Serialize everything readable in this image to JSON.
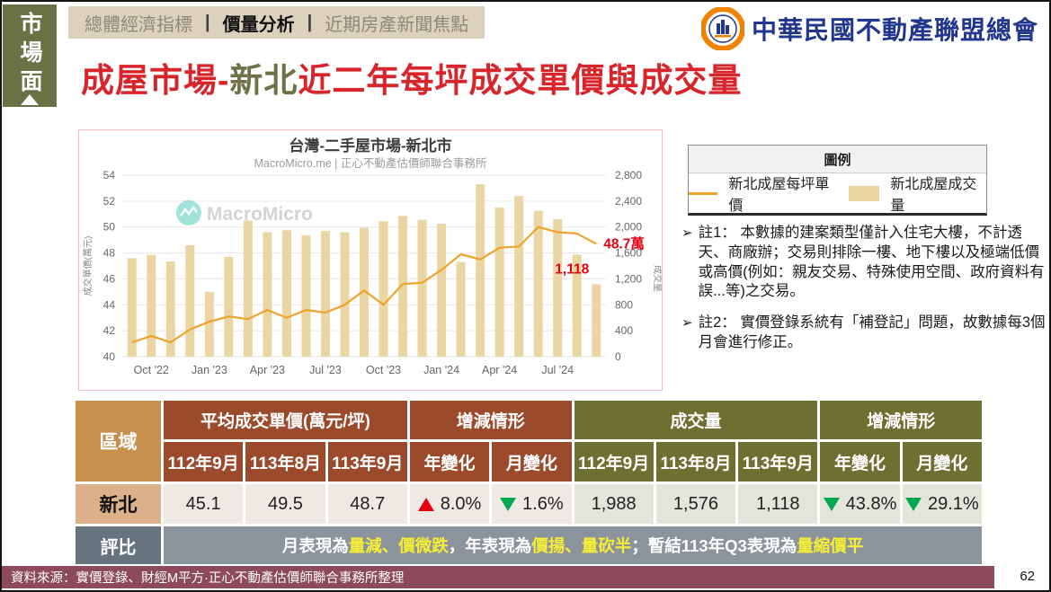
{
  "sidebar": {
    "tab_label": "市場面"
  },
  "top_tabs": {
    "items": [
      "總體經濟指標",
      "價量分析",
      "近期房產新聞焦點"
    ],
    "active": "價量分析",
    "separator": "|"
  },
  "logo": {
    "org_name": "中華民國不動產聯盟總會"
  },
  "page": {
    "title_prefix": "成屋市場-",
    "title_highlight": "新北",
    "title_suffix": "近二年每坪成交單價與成交量",
    "page_number": "62",
    "source": "資料來源：實價登錄、財經M平方·正心不動產估價師聯合事務所整理"
  },
  "chart_data": {
    "type": "combo",
    "title": "台灣-二手屋市場-新北市",
    "subtitle": "MacroMicro.me | 正心不動產估價師聯合事務所",
    "watermark": "MacroMicro",
    "x": [
      "Sep '22",
      "Oct '22",
      "Nov '22",
      "Dec '22",
      "Jan '23",
      "Feb '23",
      "Mar '23",
      "Apr '23",
      "May '23",
      "Jun '23",
      "Jul '23",
      "Aug '23",
      "Sep '23",
      "Oct '23",
      "Nov '23",
      "Dec '23",
      "Jan '24",
      "Feb '24",
      "Mar '24",
      "Apr '24",
      "May '24",
      "Jun '24",
      "Jul '24",
      "Aug '24",
      "Sep '24"
    ],
    "x_tick_labels": [
      "Oct '22",
      "Jan '23",
      "Apr '23",
      "Jul '23",
      "Oct '23",
      "Jan '24",
      "Apr '24",
      "Jul '24"
    ],
    "x_tick_indices": [
      1,
      4,
      7,
      10,
      13,
      16,
      19,
      22
    ],
    "series": [
      {
        "name": "新北成屋成交量",
        "type": "bar",
        "axis": "right",
        "color": "#ead6a2",
        "values": [
          1520,
          1570,
          1470,
          1720,
          1000,
          1540,
          2100,
          1920,
          1950,
          1870,
          1940,
          1920,
          1988,
          2090,
          2170,
          2110,
          2050,
          1460,
          2660,
          2300,
          2480,
          2250,
          2120,
          1576,
          1118
        ]
      },
      {
        "name": "新北成屋每坪單價",
        "type": "line",
        "axis": "left",
        "color": "#f0a22f",
        "values": [
          41.1,
          41.6,
          41.1,
          42.1,
          42.7,
          43.1,
          42.9,
          43.6,
          43.0,
          43.6,
          43.4,
          44.0,
          45.1,
          44.0,
          45.6,
          45.7,
          46.7,
          47.9,
          47.5,
          48.4,
          48.5,
          50.0,
          49.6,
          49.5,
          48.7
        ]
      }
    ],
    "left_axis": {
      "label": "成交單價(萬元)",
      "min": 40,
      "max": 54,
      "ticks": [
        40,
        42,
        44,
        46,
        48,
        50,
        52,
        54
      ]
    },
    "right_axis": {
      "label": "成交量",
      "min": 0,
      "max": 2800,
      "ticks": [
        0,
        400,
        800,
        1200,
        1600,
        2000,
        2400,
        2800
      ]
    },
    "annotations": [
      {
        "text": "48.7萬",
        "target": "line-last",
        "color": "#e50012"
      },
      {
        "text": "1,118",
        "target": "bar-last",
        "color": "#e50012"
      }
    ],
    "grid": true,
    "legend_position": "external-box"
  },
  "legend": {
    "title": "圖例",
    "items": [
      {
        "label": "新北成屋每坪單價",
        "type": "line",
        "color": "#f0a22f"
      },
      {
        "label": "新北成屋成交量",
        "type": "bar",
        "color": "#ead6a2"
      }
    ]
  },
  "notes": {
    "marker": "➢",
    "items": [
      "註1： 本數據的建案類型僅計入住宅大樓，不計透天、商廠辦；交易則排除一樓、地下樓以及極端低價或高價(例如：親友交易、特殊使用空間、政府資料有誤...等)之交易。",
      "註2： 實價登錄系統有「補登記」問題，故數據每3個月會進行修正。"
    ]
  },
  "table": {
    "corner_label": "區域",
    "groups": [
      {
        "label": "平均成交單價(萬元/坪)",
        "cols": [
          "112年9月",
          "113年8月",
          "113年9月"
        ]
      },
      {
        "label": "增減情形",
        "cols": [
          "年變化",
          "月變化"
        ]
      },
      {
        "label": "成交量",
        "cols": [
          "112年9月",
          "113年8月",
          "113年9月"
        ]
      },
      {
        "label": "增減情形",
        "cols": [
          "年變化",
          "月變化"
        ]
      }
    ],
    "row": {
      "region": "新北",
      "price_values": [
        "45.1",
        "49.5",
        "48.7"
      ],
      "price_year_change": {
        "dir": "up",
        "value": "8.0%"
      },
      "price_month_change": {
        "dir": "down",
        "value": "1.6%"
      },
      "volume_values": [
        "1,988",
        "1,576",
        "1,118"
      ],
      "volume_year_change": {
        "dir": "down",
        "value": "43.8%"
      },
      "volume_month_change": {
        "dir": "down",
        "value": "29.1%"
      }
    },
    "rating": {
      "label": "評比",
      "segments": [
        {
          "text": "月表現為",
          "hl": false
        },
        {
          "text": "量減、價微跌",
          "hl": true
        },
        {
          "text": "，年表現為",
          "hl": false
        },
        {
          "text": "價揚、量砍半",
          "hl": true
        },
        {
          "text": "；暫結113年Q3表現為",
          "hl": false
        },
        {
          "text": "量縮價平",
          "hl": true
        }
      ]
    }
  },
  "colors": {
    "accent_red": "#d8252b",
    "accent_olive": "#6f7247",
    "bar_fill": "#ead6a2",
    "line_stroke": "#f0a22f",
    "header_brown": "#9b4a2c",
    "header_olive": "#6d7030",
    "footer_maroon": "#8d4a5b",
    "highlight_yellow": "#f7ee36",
    "up_red": "#e60012",
    "down_green": "#00a84f"
  }
}
